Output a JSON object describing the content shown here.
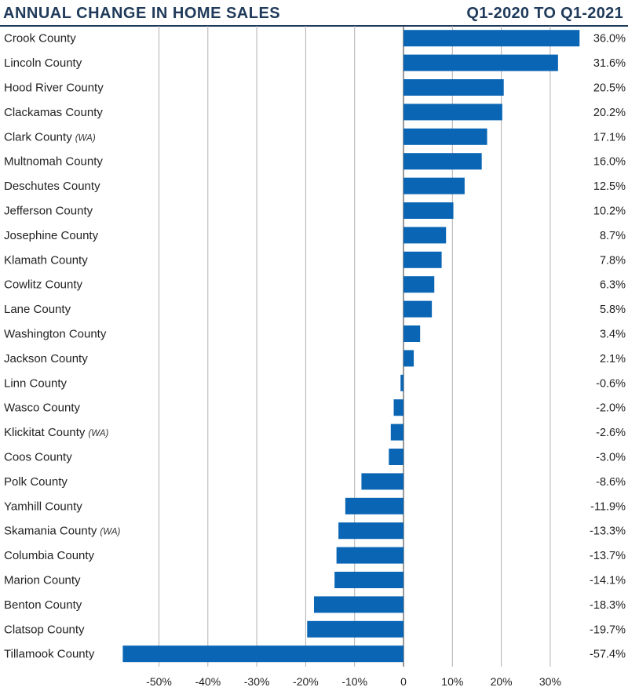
{
  "chart_data": {
    "type": "bar",
    "orientation": "horizontal",
    "title": "ANNUAL CHANGE IN HOME SALES",
    "subtitle": "Q1-2020 TO Q1-2021",
    "bar_color": "#0a66b5",
    "grid_color": "#b0b0b0",
    "categories": [
      {
        "name": "Crook County",
        "note": ""
      },
      {
        "name": "Lincoln County",
        "note": ""
      },
      {
        "name": "Hood River County",
        "note": ""
      },
      {
        "name": "Clackamas County",
        "note": ""
      },
      {
        "name": "Clark County",
        "note": "(WA)"
      },
      {
        "name": "Multnomah County",
        "note": ""
      },
      {
        "name": "Deschutes County",
        "note": ""
      },
      {
        "name": "Jefferson County",
        "note": ""
      },
      {
        "name": "Josephine County",
        "note": ""
      },
      {
        "name": "Klamath County",
        "note": ""
      },
      {
        "name": "Cowlitz County",
        "note": ""
      },
      {
        "name": "Lane County",
        "note": ""
      },
      {
        "name": "Washington County",
        "note": ""
      },
      {
        "name": "Jackson County",
        "note": ""
      },
      {
        "name": "Linn County",
        "note": ""
      },
      {
        "name": "Wasco County",
        "note": ""
      },
      {
        "name": "Klickitat County",
        "note": "(WA)"
      },
      {
        "name": "Coos County",
        "note": ""
      },
      {
        "name": "Polk County",
        "note": ""
      },
      {
        "name": "Yamhill County",
        "note": ""
      },
      {
        "name": "Skamania County",
        "note": "(WA)"
      },
      {
        "name": "Columbia County",
        "note": ""
      },
      {
        "name": "Marion County",
        "note": ""
      },
      {
        "name": "Benton County",
        "note": ""
      },
      {
        "name": "Clatsop County",
        "note": ""
      },
      {
        "name": "Tillamook County",
        "note": ""
      }
    ],
    "values": [
      36.0,
      31.6,
      20.5,
      20.2,
      17.1,
      16.0,
      12.5,
      10.2,
      8.7,
      7.8,
      6.3,
      5.8,
      3.4,
      2.1,
      -0.6,
      -2.0,
      -2.6,
      -3.0,
      -8.6,
      -11.9,
      -13.3,
      -13.7,
      -14.1,
      -18.3,
      -19.7,
      -57.4
    ],
    "value_labels": [
      "36.0%",
      "31.6%",
      "20.5%",
      "20.2%",
      "17.1%",
      "16.0%",
      "12.5%",
      "10.2%",
      "8.7%",
      "7.8%",
      "6.3%",
      "5.8%",
      "3.4%",
      "2.1%",
      "-0.6%",
      "-2.0%",
      "-2.6%",
      "-3.0%",
      "-8.6%",
      "-11.9%",
      "-13.3%",
      "-13.7%",
      "-14.1%",
      "-18.3%",
      "-19.7%",
      "-57.4%"
    ],
    "ticks": [
      -50,
      -40,
      -30,
      -20,
      -10,
      0,
      10,
      20,
      30
    ],
    "tick_labels": [
      "-50%",
      "-40%",
      "-30%",
      "-20%",
      "-10%",
      "0",
      "10%",
      "20%",
      "30%"
    ],
    "xlim": [
      -60,
      38
    ],
    "xlabel": "",
    "ylabel": "",
    "grid": true
  }
}
